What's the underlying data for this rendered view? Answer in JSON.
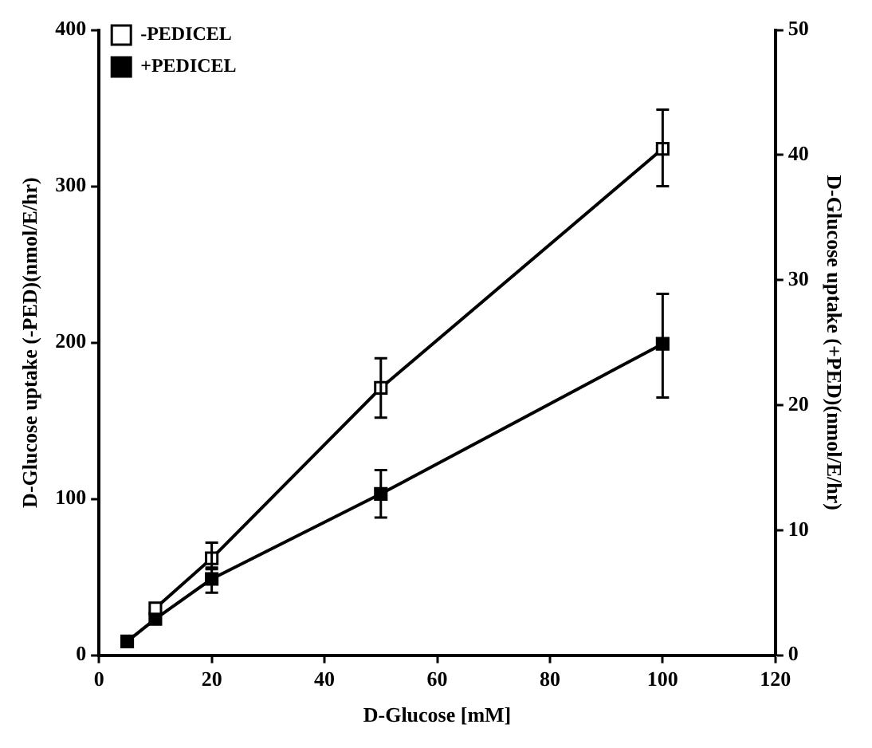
{
  "chart_data": {
    "type": "line",
    "xlabel": "D-Glucose [mM]",
    "ylabel": "D-Glucose uptake (-PED)(nmol/E/hr)",
    "y2label": "D-Glucose uptake (+PED)(nmol/E/hr)",
    "x": [
      5,
      10,
      20,
      50,
      100
    ],
    "series": [
      {
        "name": "-PEDICEL",
        "color": "#000000",
        "values": [
          null,
          30,
          62,
          171,
          324
        ],
        "errors": [
          null,
          null,
          [
            55,
            72
          ],
          [
            152,
            190
          ],
          [
            300,
            349
          ]
        ]
      },
      {
        "name": "+PEDICEL",
        "color": "#000000",
        "axis": "y2",
        "values": [
          1.1,
          2.9,
          6.1,
          12.9,
          24.9
        ],
        "errors": [
          null,
          null,
          [
            5,
            7
          ],
          [
            11,
            14.8
          ],
          [
            20.6,
            28.9
          ]
        ]
      }
    ],
    "xlim": [
      0,
      120
    ],
    "xticks": [
      0,
      20,
      40,
      60,
      80,
      100,
      120
    ],
    "ylim": [
      0,
      400
    ],
    "yticks": [
      0,
      100,
      200,
      300,
      400
    ],
    "y2lim": [
      0,
      50
    ],
    "y2ticks": [
      0,
      10,
      20,
      30,
      40,
      50
    ],
    "grid": false,
    "legend": "top left",
    "marker": "square",
    "line_style": "solid"
  }
}
